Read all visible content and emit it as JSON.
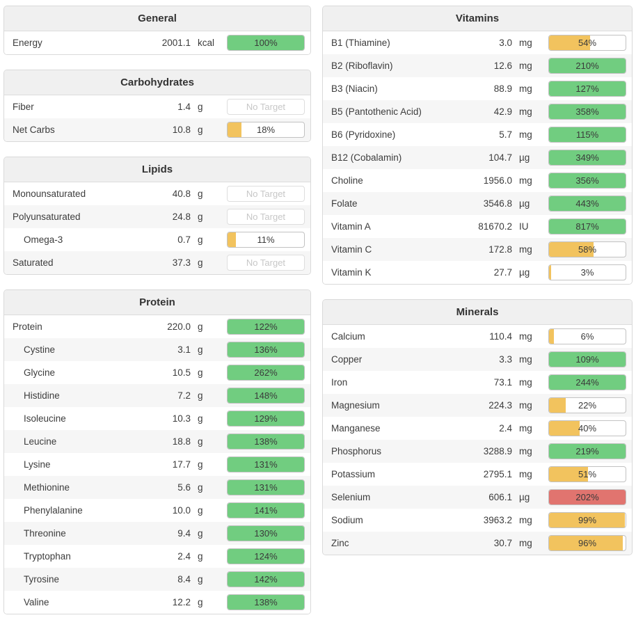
{
  "colors": {
    "green": "#71cd80",
    "yellow": "#f2c35e",
    "red": "#e1746f"
  },
  "no_target_label": "No Target",
  "panels": [
    {
      "title": "General",
      "column": "left",
      "rows": [
        {
          "name": "Energy",
          "value": "2001.1",
          "unit": "kcal",
          "label": "100%",
          "percent": 100,
          "color": "green",
          "indent": false
        }
      ]
    },
    {
      "title": "Carbohydrates",
      "column": "left",
      "rows": [
        {
          "name": "Fiber",
          "value": "1.4",
          "unit": "g",
          "label": "No Target",
          "percent": null,
          "color": null,
          "indent": false
        },
        {
          "name": "Net Carbs",
          "value": "10.8",
          "unit": "g",
          "label": "18%",
          "percent": 18,
          "color": "yellow",
          "indent": false
        }
      ]
    },
    {
      "title": "Lipids",
      "column": "left",
      "rows": [
        {
          "name": "Monounsaturated",
          "value": "40.8",
          "unit": "g",
          "label": "No Target",
          "percent": null,
          "color": null,
          "indent": false
        },
        {
          "name": "Polyunsaturated",
          "value": "24.8",
          "unit": "g",
          "label": "No Target",
          "percent": null,
          "color": null,
          "indent": false
        },
        {
          "name": "Omega-3",
          "value": "0.7",
          "unit": "g",
          "label": "11%",
          "percent": 11,
          "color": "yellow",
          "indent": true
        },
        {
          "name": "Saturated",
          "value": "37.3",
          "unit": "g",
          "label": "No Target",
          "percent": null,
          "color": null,
          "indent": false
        }
      ]
    },
    {
      "title": "Protein",
      "column": "left",
      "rows": [
        {
          "name": "Protein",
          "value": "220.0",
          "unit": "g",
          "label": "122%",
          "percent": 122,
          "color": "green",
          "indent": false
        },
        {
          "name": "Cystine",
          "value": "3.1",
          "unit": "g",
          "label": "136%",
          "percent": 136,
          "color": "green",
          "indent": true
        },
        {
          "name": "Glycine",
          "value": "10.5",
          "unit": "g",
          "label": "262%",
          "percent": 262,
          "color": "green",
          "indent": true
        },
        {
          "name": "Histidine",
          "value": "7.2",
          "unit": "g",
          "label": "148%",
          "percent": 148,
          "color": "green",
          "indent": true
        },
        {
          "name": "Isoleucine",
          "value": "10.3",
          "unit": "g",
          "label": "129%",
          "percent": 129,
          "color": "green",
          "indent": true
        },
        {
          "name": "Leucine",
          "value": "18.8",
          "unit": "g",
          "label": "138%",
          "percent": 138,
          "color": "green",
          "indent": true
        },
        {
          "name": "Lysine",
          "value": "17.7",
          "unit": "g",
          "label": "131%",
          "percent": 131,
          "color": "green",
          "indent": true
        },
        {
          "name": "Methionine",
          "value": "5.6",
          "unit": "g",
          "label": "131%",
          "percent": 131,
          "color": "green",
          "indent": true
        },
        {
          "name": "Phenylalanine",
          "value": "10.0",
          "unit": "g",
          "label": "141%",
          "percent": 141,
          "color": "green",
          "indent": true
        },
        {
          "name": "Threonine",
          "value": "9.4",
          "unit": "g",
          "label": "130%",
          "percent": 130,
          "color": "green",
          "indent": true
        },
        {
          "name": "Tryptophan",
          "value": "2.4",
          "unit": "g",
          "label": "124%",
          "percent": 124,
          "color": "green",
          "indent": true
        },
        {
          "name": "Tyrosine",
          "value": "8.4",
          "unit": "g",
          "label": "142%",
          "percent": 142,
          "color": "green",
          "indent": true
        },
        {
          "name": "Valine",
          "value": "12.2",
          "unit": "g",
          "label": "138%",
          "percent": 138,
          "color": "green",
          "indent": true
        }
      ]
    },
    {
      "title": "Vitamins",
      "column": "right",
      "rows": [
        {
          "name": "B1 (Thiamine)",
          "value": "3.0",
          "unit": "mg",
          "label": "54%",
          "percent": 54,
          "color": "yellow",
          "indent": false
        },
        {
          "name": "B2 (Riboflavin)",
          "value": "12.6",
          "unit": "mg",
          "label": "210%",
          "percent": 210,
          "color": "green",
          "indent": false
        },
        {
          "name": "B3 (Niacin)",
          "value": "88.9",
          "unit": "mg",
          "label": "127%",
          "percent": 127,
          "color": "green",
          "indent": false
        },
        {
          "name": "B5 (Pantothenic Acid)",
          "value": "42.9",
          "unit": "mg",
          "label": "358%",
          "percent": 358,
          "color": "green",
          "indent": false
        },
        {
          "name": "B6 (Pyridoxine)",
          "value": "5.7",
          "unit": "mg",
          "label": "115%",
          "percent": 115,
          "color": "green",
          "indent": false
        },
        {
          "name": "B12 (Cobalamin)",
          "value": "104.7",
          "unit": "µg",
          "label": "349%",
          "percent": 349,
          "color": "green",
          "indent": false
        },
        {
          "name": "Choline",
          "value": "1956.0",
          "unit": "mg",
          "label": "356%",
          "percent": 356,
          "color": "green",
          "indent": false
        },
        {
          "name": "Folate",
          "value": "3546.8",
          "unit": "µg",
          "label": "443%",
          "percent": 443,
          "color": "green",
          "indent": false
        },
        {
          "name": "Vitamin A",
          "value": "81670.2",
          "unit": "IU",
          "label": "817%",
          "percent": 817,
          "color": "green",
          "indent": false
        },
        {
          "name": "Vitamin C",
          "value": "172.8",
          "unit": "mg",
          "label": "58%",
          "percent": 58,
          "color": "yellow",
          "indent": false
        },
        {
          "name": "Vitamin K",
          "value": "27.7",
          "unit": "µg",
          "label": "3%",
          "percent": 3,
          "color": "yellow",
          "indent": false
        }
      ]
    },
    {
      "title": "Minerals",
      "column": "right",
      "rows": [
        {
          "name": "Calcium",
          "value": "110.4",
          "unit": "mg",
          "label": "6%",
          "percent": 6,
          "color": "yellow",
          "indent": false
        },
        {
          "name": "Copper",
          "value": "3.3",
          "unit": "mg",
          "label": "109%",
          "percent": 109,
          "color": "green",
          "indent": false
        },
        {
          "name": "Iron",
          "value": "73.1",
          "unit": "mg",
          "label": "244%",
          "percent": 244,
          "color": "green",
          "indent": false
        },
        {
          "name": "Magnesium",
          "value": "224.3",
          "unit": "mg",
          "label": "22%",
          "percent": 22,
          "color": "yellow",
          "indent": false
        },
        {
          "name": "Manganese",
          "value": "2.4",
          "unit": "mg",
          "label": "40%",
          "percent": 40,
          "color": "yellow",
          "indent": false
        },
        {
          "name": "Phosphorus",
          "value": "3288.9",
          "unit": "mg",
          "label": "219%",
          "percent": 219,
          "color": "green",
          "indent": false
        },
        {
          "name": "Potassium",
          "value": "2795.1",
          "unit": "mg",
          "label": "51%",
          "percent": 51,
          "color": "yellow",
          "indent": false
        },
        {
          "name": "Selenium",
          "value": "606.1",
          "unit": "µg",
          "label": "202%",
          "percent": 202,
          "color": "red",
          "indent": false
        },
        {
          "name": "Sodium",
          "value": "3963.2",
          "unit": "mg",
          "label": "99%",
          "percent": 99,
          "color": "yellow",
          "indent": false
        },
        {
          "name": "Zinc",
          "value": "30.7",
          "unit": "mg",
          "label": "96%",
          "percent": 96,
          "color": "yellow",
          "indent": false
        }
      ]
    }
  ]
}
